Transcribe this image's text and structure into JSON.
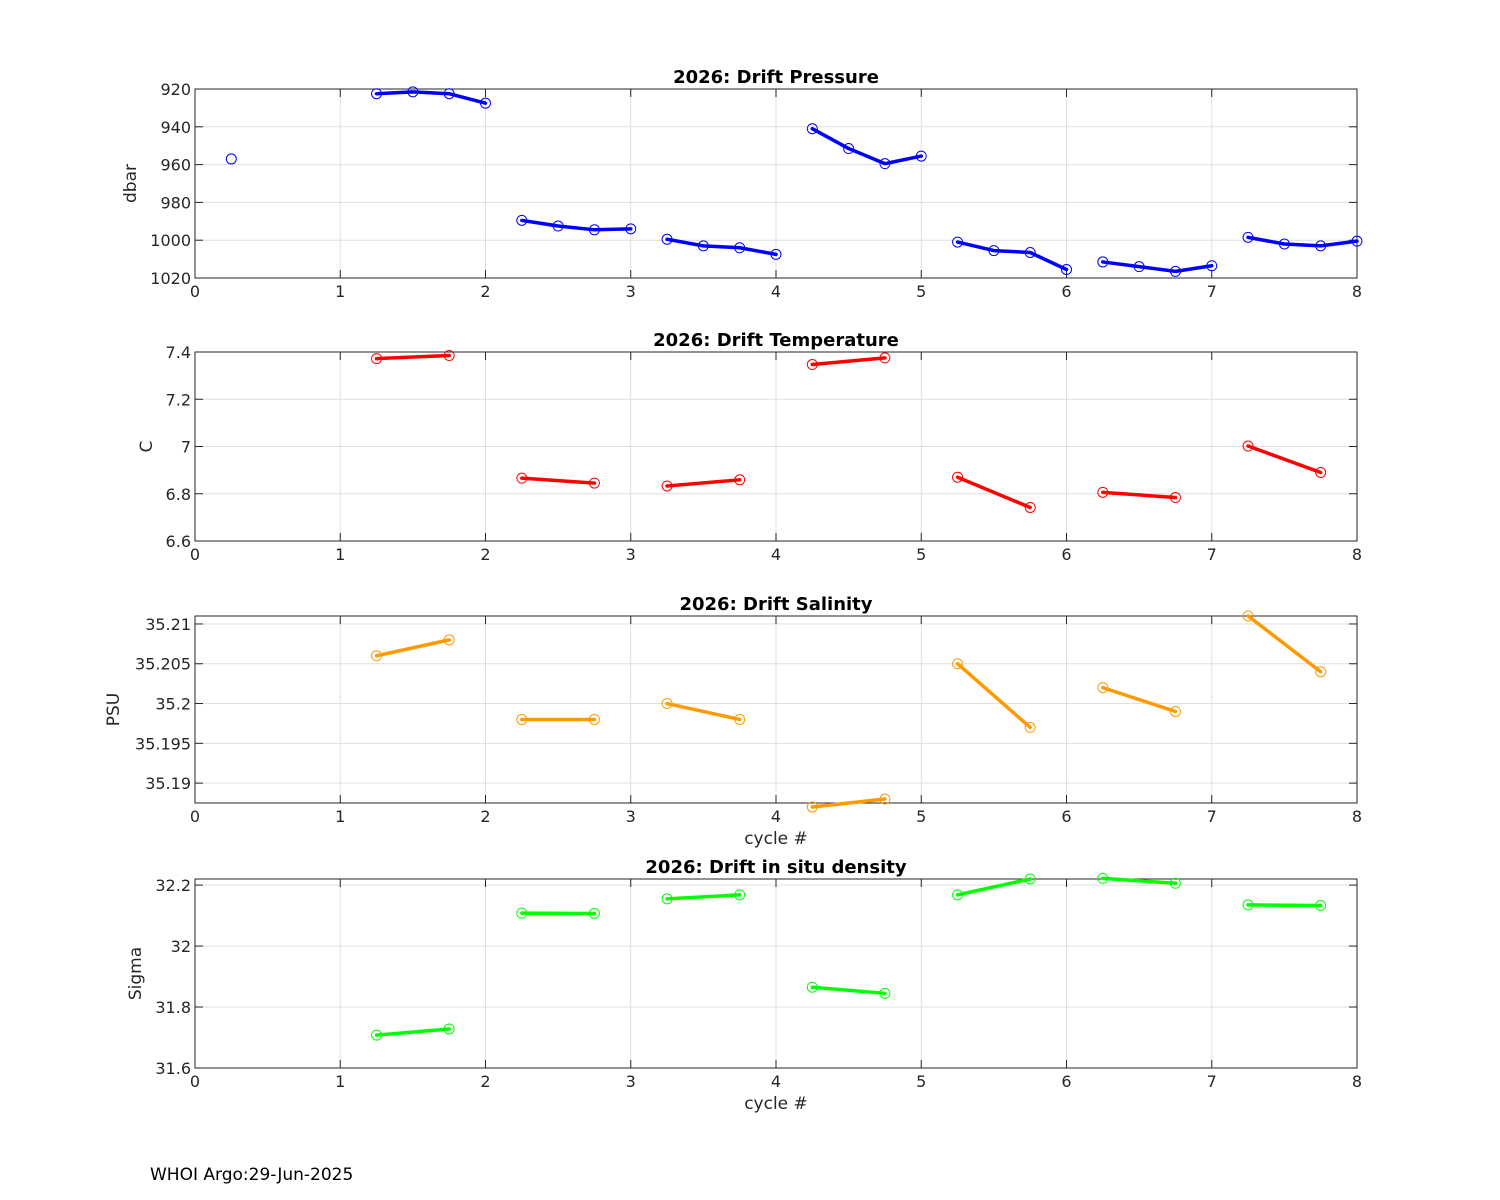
{
  "footer": "WHOI Argo:29-Jun-2025",
  "chart_data": [
    {
      "type": "line",
      "title": "2026: Drift Pressure",
      "ylabel": "dbar",
      "xlabel": "",
      "xlim": [
        0,
        8
      ],
      "ylim": [
        920,
        1020
      ],
      "y_reversed": true,
      "xticks": [
        0,
        1,
        2,
        3,
        4,
        5,
        6,
        7,
        8
      ],
      "yticks": [
        920,
        940,
        960,
        980,
        1000,
        1020
      ],
      "ytick_labels": [
        "920",
        "940",
        "960",
        "980",
        "1000",
        "1020"
      ],
      "grid": true,
      "color": "#0000ff",
      "segments": [
        {
          "x": [
            0.25
          ],
          "y": [
            957
          ]
        },
        {
          "x": [
            1.25,
            1.5,
            1.75,
            2.0
          ],
          "y": [
            922.5,
            921.5,
            922.5,
            927.5
          ]
        },
        {
          "x": [
            2.25,
            2.5,
            2.75,
            3.0
          ],
          "y": [
            989.5,
            992.5,
            994.5,
            994.0
          ]
        },
        {
          "x": [
            3.25,
            3.5,
            3.75,
            4.0
          ],
          "y": [
            999.5,
            1003.0,
            1004.0,
            1007.5
          ]
        },
        {
          "x": [
            4.25,
            4.5,
            4.75,
            5.0
          ],
          "y": [
            941.0,
            951.5,
            959.5,
            955.5
          ]
        },
        {
          "x": [
            5.25,
            5.5,
            5.75,
            6.0
          ],
          "y": [
            1001.0,
            1005.5,
            1006.5,
            1015.5
          ]
        },
        {
          "x": [
            6.25,
            6.5,
            6.75,
            7.0
          ],
          "y": [
            1011.5,
            1014.0,
            1016.5,
            1013.5
          ]
        },
        {
          "x": [
            7.25,
            7.5,
            7.75,
            8.0
          ],
          "y": [
            998.5,
            1002.0,
            1003.0,
            1000.5
          ]
        }
      ]
    },
    {
      "type": "line",
      "title": "2026: Drift Temperature",
      "ylabel": "C",
      "xlabel": "",
      "xlim": [
        0,
        8
      ],
      "ylim": [
        6.6,
        7.4
      ],
      "y_reversed": false,
      "xticks": [
        0,
        1,
        2,
        3,
        4,
        5,
        6,
        7,
        8
      ],
      "yticks": [
        6.6,
        6.8,
        7.0,
        7.2,
        7.4
      ],
      "ytick_labels": [
        "6.6",
        "6.8",
        "7",
        "7.2",
        "7.4"
      ],
      "grid": true,
      "color": "#ff0000",
      "segments": [
        {
          "x": [
            1.25,
            1.75
          ],
          "y": [
            7.372,
            7.385
          ]
        },
        {
          "x": [
            2.25,
            2.75
          ],
          "y": [
            6.866,
            6.845
          ]
        },
        {
          "x": [
            3.25,
            3.75
          ],
          "y": [
            6.833,
            6.859
          ]
        },
        {
          "x": [
            4.25,
            4.75
          ],
          "y": [
            7.347,
            7.375
          ]
        },
        {
          "x": [
            5.25,
            5.75
          ],
          "y": [
            6.87,
            6.742
          ]
        },
        {
          "x": [
            6.25,
            6.75
          ],
          "y": [
            6.806,
            6.784
          ]
        },
        {
          "x": [
            7.25,
            7.75
          ],
          "y": [
            7.002,
            6.89
          ]
        }
      ]
    },
    {
      "type": "line",
      "title": "2026: Drift Salinity",
      "ylabel": "PSU",
      "xlabel": "cycle #",
      "xlim": [
        0,
        8
      ],
      "ylim": [
        35.1875,
        35.211
      ],
      "y_reversed": false,
      "xticks": [
        0,
        1,
        2,
        3,
        4,
        5,
        6,
        7,
        8
      ],
      "yticks": [
        35.19,
        35.195,
        35.2,
        35.205,
        35.21
      ],
      "ytick_labels": [
        "35.19",
        "35.195",
        "35.2",
        "35.205",
        "35.21"
      ],
      "grid": true,
      "color": "#ff9900",
      "segments": [
        {
          "x": [
            1.25,
            1.75
          ],
          "y": [
            35.206,
            35.208
          ]
        },
        {
          "x": [
            2.25,
            2.75
          ],
          "y": [
            35.198,
            35.198
          ]
        },
        {
          "x": [
            3.25,
            3.75
          ],
          "y": [
            35.2,
            35.198
          ]
        },
        {
          "x": [
            4.25,
            4.75
          ],
          "y": [
            35.187,
            35.188
          ]
        },
        {
          "x": [
            5.25,
            5.75
          ],
          "y": [
            35.205,
            35.197
          ]
        },
        {
          "x": [
            6.25,
            6.75
          ],
          "y": [
            35.202,
            35.199
          ]
        },
        {
          "x": [
            7.25,
            7.75
          ],
          "y": [
            35.211,
            35.204
          ]
        }
      ]
    },
    {
      "type": "line",
      "title": "2026: Drift in situ density",
      "ylabel": "Sigma",
      "xlabel": "cycle #",
      "xlim": [
        0,
        8
      ],
      "ylim": [
        31.6,
        32.22
      ],
      "y_reversed": false,
      "xticks": [
        0,
        1,
        2,
        3,
        4,
        5,
        6,
        7,
        8
      ],
      "yticks": [
        31.6,
        31.8,
        32.0,
        32.2
      ],
      "ytick_labels": [
        "31.6",
        "31.8",
        "32",
        "32.2"
      ],
      "grid": true,
      "color": "#00ff00",
      "segments": [
        {
          "x": [
            1.25,
            1.75
          ],
          "y": [
            31.708,
            31.728
          ]
        },
        {
          "x": [
            2.25,
            2.75
          ],
          "y": [
            32.108,
            32.107
          ]
        },
        {
          "x": [
            3.25,
            3.75
          ],
          "y": [
            32.155,
            32.168
          ]
        },
        {
          "x": [
            4.25,
            4.75
          ],
          "y": [
            31.865,
            31.845
          ]
        },
        {
          "x": [
            5.25,
            5.75
          ],
          "y": [
            32.168,
            32.22
          ]
        },
        {
          "x": [
            6.25,
            6.75
          ],
          "y": [
            32.222,
            32.206
          ]
        },
        {
          "x": [
            7.25,
            7.75
          ],
          "y": [
            32.135,
            32.133
          ]
        }
      ]
    }
  ]
}
